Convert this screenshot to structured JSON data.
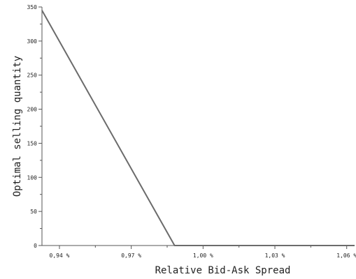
{
  "chart_data": {
    "type": "line",
    "title": "",
    "xlabel": "Relative Bid-Ask Spread",
    "ylabel": "Optimal selling quantity",
    "xlim": [
      0.9327,
      1.0633
    ],
    "ylim": [
      0,
      350
    ],
    "x_ticks": [
      0.94,
      0.97,
      1.0,
      1.03,
      1.06
    ],
    "x_tick_labels": [
      "0,94 %",
      "0,97 %",
      "1,00 %",
      "1,03 %",
      "1,06 %"
    ],
    "y_ticks": [
      0,
      50,
      100,
      150,
      200,
      250,
      300,
      350
    ],
    "y_tick_labels": [
      "0",
      "50",
      "100",
      "150",
      "200",
      "250",
      "300",
      "350"
    ],
    "grid": false,
    "series": [
      {
        "color": "#6b6b6b",
        "x": [
          0.9327,
          0.9881,
          1.0633
        ],
        "y": [
          345,
          0,
          0
        ]
      }
    ]
  }
}
